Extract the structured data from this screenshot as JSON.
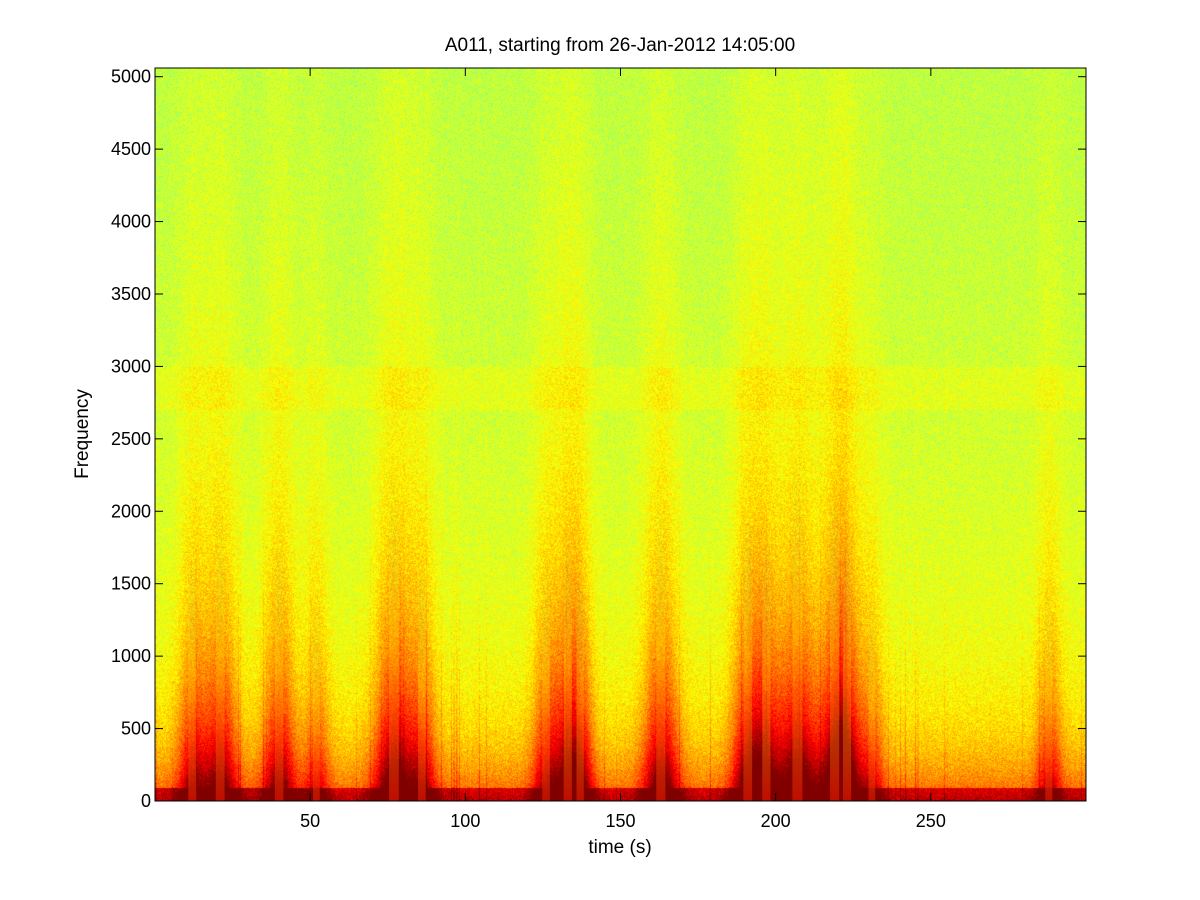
{
  "chart_data": {
    "type": "heatmap",
    "title": "A011, starting from 26-Jan-2012 14:05:00",
    "xlabel": "time (s)",
    "ylabel": "Frequency",
    "xlim": [
      0,
      300
    ],
    "ylim": [
      0,
      5060
    ],
    "xticks": [
      50,
      100,
      150,
      200,
      250
    ],
    "yticks": [
      0,
      500,
      1000,
      1500,
      2000,
      2500,
      3000,
      3500,
      4000,
      4500,
      5000
    ],
    "colormap": "jet",
    "colors": {
      "background_high_freq": "#22ffdd",
      "mid_band": "#7fff66",
      "low_band": "#ffff00",
      "energy_peak": "#ff1a00"
    },
    "events": [
      {
        "time": 12,
        "strength": 0.65
      },
      {
        "time": 21,
        "strength": 0.8
      },
      {
        "time": 40,
        "strength": 0.75
      },
      {
        "time": 52,
        "strength": 0.45
      },
      {
        "time": 77,
        "strength": 0.95
      },
      {
        "time": 86,
        "strength": 0.6
      },
      {
        "time": 126,
        "strength": 0.6
      },
      {
        "time": 133,
        "strength": 0.7
      },
      {
        "time": 137,
        "strength": 0.55
      },
      {
        "time": 163,
        "strength": 0.85
      },
      {
        "time": 191,
        "strength": 0.8
      },
      {
        "time": 197,
        "strength": 0.7
      },
      {
        "time": 207,
        "strength": 1.0
      },
      {
        "time": 219,
        "strength": 0.85
      },
      {
        "time": 223,
        "strength": 0.7
      },
      {
        "time": 231,
        "strength": 0.45
      },
      {
        "time": 288,
        "strength": 0.5
      }
    ]
  }
}
